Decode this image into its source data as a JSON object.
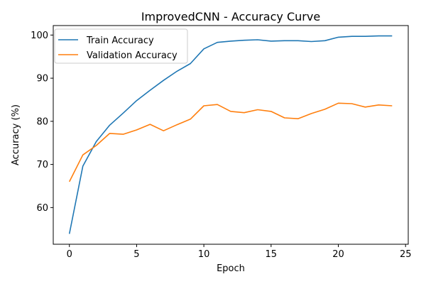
{
  "chart_data": {
    "type": "line",
    "title": "ImprovedCNN - Accuracy Curve",
    "xlabel": "Epoch",
    "ylabel": "Accuracy (%)",
    "xlim": [
      -1.2,
      25.2
    ],
    "ylim": [
      51.5,
      102.2
    ],
    "xticks": [
      0,
      5,
      10,
      15,
      20,
      25
    ],
    "yticks": [
      60,
      70,
      80,
      90,
      100
    ],
    "grid": false,
    "legend_position": "top-left",
    "x": [
      0,
      1,
      2,
      3,
      4,
      5,
      6,
      7,
      8,
      9,
      10,
      11,
      12,
      13,
      14,
      15,
      16,
      17,
      18,
      19,
      20,
      21,
      22,
      23,
      24
    ],
    "series": [
      {
        "name": "Train Accuracy",
        "color": "#1f77b4",
        "values": [
          53.9,
          69.6,
          75.3,
          79.1,
          81.9,
          84.8,
          87.2,
          89.5,
          91.6,
          93.4,
          96.8,
          98.3,
          98.6,
          98.8,
          98.9,
          98.6,
          98.7,
          98.7,
          98.5,
          98.7,
          99.5,
          99.7,
          99.7,
          99.8,
          99.8
        ]
      },
      {
        "name": "Validation Accuracy",
        "color": "#ff7f0e",
        "values": [
          66.0,
          72.2,
          74.4,
          77.2,
          77.0,
          78.0,
          79.3,
          77.8,
          79.2,
          80.5,
          83.6,
          83.9,
          82.3,
          82.0,
          82.7,
          82.3,
          80.8,
          80.6,
          81.8,
          82.8,
          84.2,
          84.1,
          83.3,
          83.8,
          83.6
        ]
      }
    ]
  }
}
